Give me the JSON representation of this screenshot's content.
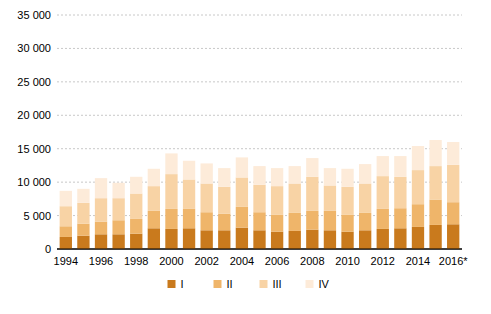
{
  "chart_data": {
    "type": "bar",
    "stacked": true,
    "grid": true,
    "legend": "bottom",
    "categories": [
      "1994",
      null,
      "1996",
      null,
      "1998",
      null,
      "2000",
      null,
      "2002",
      null,
      "2004",
      null,
      "2006",
      null,
      "2008",
      null,
      "2010",
      null,
      "2012",
      null,
      "2014",
      null,
      "2016*"
    ],
    "ylim": [
      0,
      35000
    ],
    "yticks": [
      0,
      {
        "value": 5000,
        "label": "5 000"
      },
      {
        "value": 10000,
        "label": "10 000"
      },
      {
        "value": 15000,
        "label": "15 000"
      },
      {
        "value": 20000,
        "label": "20 000"
      },
      {
        "value": 25000,
        "label": "25 000"
      },
      {
        "value": 30000,
        "label": "30 000"
      },
      {
        "value": 35000,
        "label": "35 000"
      }
    ],
    "series": [
      {
        "name": "I",
        "color": "#c97a1d",
        "values": [
          1800,
          2000,
          2200,
          2200,
          2300,
          3100,
          3000,
          3100,
          2800,
          2800,
          3200,
          2800,
          2600,
          2700,
          2900,
          2800,
          2600,
          2800,
          3000,
          3100,
          3300,
          3600,
          3700
        ]
      },
      {
        "name": "II",
        "color": "#efb56a",
        "values": [
          1600,
          1800,
          1900,
          2100,
          2200,
          2600,
          3000,
          2900,
          2700,
          2500,
          3100,
          2700,
          2500,
          2700,
          2800,
          2900,
          2500,
          2600,
          3000,
          3000,
          3400,
          3800,
          3300
        ]
      },
      {
        "name": "III",
        "color": "#f8d3a5",
        "values": [
          3000,
          3100,
          3500,
          3300,
          3800,
          3700,
          5200,
          4400,
          4300,
          4000,
          4400,
          4100,
          4300,
          4400,
          5100,
          3800,
          4200,
          4400,
          4900,
          4700,
          5100,
          5000,
          5600
        ]
      },
      {
        "name": "IV",
        "color": "#fdebd9",
        "values": [
          2300,
          2100,
          3000,
          2300,
          2500,
          2600,
          3100,
          2800,
          3000,
          2800,
          3000,
          2800,
          2700,
          2600,
          2800,
          2600,
          2700,
          2900,
          3000,
          3100,
          3600,
          3900,
          3400
        ]
      }
    ]
  }
}
